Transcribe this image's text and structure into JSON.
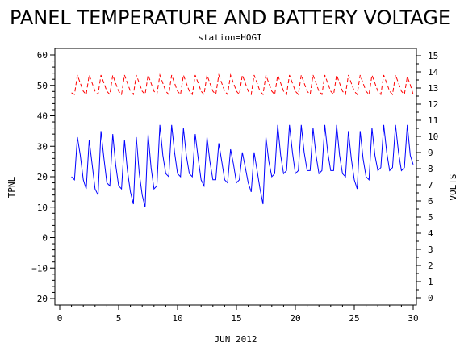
{
  "chart_data": {
    "type": "line",
    "title": "PANEL TEMPERATURE AND BATTERY VOLTAGE",
    "subtitle": "station=HOGI",
    "xlabel": "JUN 2012",
    "ylabel_left": "TPNL",
    "ylabel_right": "VOLTS",
    "xlim": [
      0,
      30
    ],
    "ylim_left": [
      -20,
      60
    ],
    "ylim_right": [
      0,
      15
    ],
    "x_ticks": [
      0,
      5,
      10,
      15,
      20,
      25,
      30
    ],
    "x_tick_labels": [
      "0",
      "5",
      "10",
      "15",
      "20",
      "25",
      "30"
    ],
    "y_left_ticks": [
      -20,
      -10,
      0,
      10,
      20,
      30,
      40,
      50,
      60
    ],
    "y_left_tick_labels": [
      "−20",
      "−10",
      "0",
      "10",
      "20",
      "30",
      "40",
      "50",
      "60"
    ],
    "y_right_ticks": [
      0,
      1,
      2,
      3,
      4,
      5,
      6,
      7,
      8,
      9,
      10,
      11,
      12,
      13,
      14,
      15
    ],
    "y_right_tick_labels": [
      "0",
      "1",
      "2",
      "3",
      "4",
      "5",
      "6",
      "7",
      "8",
      "9",
      "10",
      "11",
      "12",
      "13",
      "14",
      "15"
    ],
    "grid": false,
    "series": [
      {
        "axis": "left",
        "color": "#0000ff",
        "style": "solid",
        "x": [
          1.0,
          1.25,
          1.5,
          1.75,
          2.0,
          2.25,
          2.5,
          2.75,
          3.0,
          3.25,
          3.5,
          3.75,
          4.0,
          4.25,
          4.5,
          4.75,
          5.0,
          5.25,
          5.5,
          5.75,
          6.0,
          6.25,
          6.5,
          6.75,
          7.0,
          7.25,
          7.5,
          7.75,
          8.0,
          8.25,
          8.5,
          8.75,
          9.0,
          9.25,
          9.5,
          9.75,
          10.0,
          10.25,
          10.5,
          10.75,
          11.0,
          11.25,
          11.5,
          11.75,
          12.0,
          12.25,
          12.5,
          12.75,
          13.0,
          13.25,
          13.5,
          13.75,
          14.0,
          14.25,
          14.5,
          14.75,
          15.0,
          15.25,
          15.5,
          15.75,
          16.0,
          16.25,
          16.5,
          16.75,
          17.0,
          17.25,
          17.5,
          17.75,
          18.0,
          18.25,
          18.5,
          18.75,
          19.0,
          19.25,
          19.5,
          19.75,
          20.0,
          20.25,
          20.5,
          20.75,
          21.0,
          21.25,
          21.5,
          21.75,
          22.0,
          22.25,
          22.5,
          22.75,
          23.0,
          23.25,
          23.5,
          23.75,
          24.0,
          24.25,
          24.5,
          24.75,
          25.0,
          25.25,
          25.5,
          25.75,
          26.0,
          26.25,
          26.5,
          26.75,
          27.0,
          27.25,
          27.5,
          27.75,
          28.0,
          28.25,
          28.5,
          28.75,
          29.0,
          29.25,
          29.5,
          29.75,
          30.0
        ],
        "values": [
          20,
          19,
          33,
          27,
          19,
          16,
          32,
          24,
          16,
          14,
          35,
          26,
          18,
          17,
          34,
          24,
          17,
          16,
          32,
          22,
          15,
          11,
          33,
          21,
          14,
          10,
          34,
          23,
          16,
          17,
          37,
          27,
          21,
          20,
          37,
          28,
          21,
          20,
          36,
          27,
          21,
          20,
          34,
          26,
          19,
          17,
          33,
          25,
          19,
          19,
          31,
          25,
          19,
          18,
          29,
          24,
          18,
          19,
          28,
          23,
          18,
          15,
          28,
          22,
          16,
          11,
          33,
          25,
          20,
          21,
          37,
          27,
          21,
          22,
          37,
          28,
          21,
          22,
          37,
          28,
          22,
          22,
          36,
          27,
          21,
          22,
          37,
          28,
          22,
          22,
          37,
          27,
          21,
          20,
          35,
          26,
          19,
          16,
          35,
          26,
          20,
          19,
          36,
          27,
          22,
          23,
          37,
          28,
          22,
          23,
          37,
          28,
          22,
          23,
          37,
          27,
          24
        ]
      },
      {
        "axis": "right",
        "color": "#ff0000",
        "style": "dashed",
        "x": [
          1.0,
          1.25,
          1.5,
          1.75,
          2.0,
          2.25,
          2.5,
          2.75,
          3.0,
          3.25,
          3.5,
          3.75,
          4.0,
          4.25,
          4.5,
          4.75,
          5.0,
          5.25,
          5.5,
          5.75,
          6.0,
          6.25,
          6.5,
          6.75,
          7.0,
          7.25,
          7.5,
          7.75,
          8.0,
          8.25,
          8.5,
          8.75,
          9.0,
          9.25,
          9.5,
          9.75,
          10.0,
          10.25,
          10.5,
          10.75,
          11.0,
          11.25,
          11.5,
          11.75,
          12.0,
          12.25,
          12.5,
          12.75,
          13.0,
          13.25,
          13.5,
          13.75,
          14.0,
          14.25,
          14.5,
          14.75,
          15.0,
          15.25,
          15.5,
          15.75,
          16.0,
          16.25,
          16.5,
          16.75,
          17.0,
          17.25,
          17.5,
          17.75,
          18.0,
          18.25,
          18.5,
          18.75,
          19.0,
          19.25,
          19.5,
          19.75,
          20.0,
          20.25,
          20.5,
          20.75,
          21.0,
          21.25,
          21.5,
          21.75,
          22.0,
          22.25,
          22.5,
          22.75,
          23.0,
          23.25,
          23.5,
          23.75,
          24.0,
          24.25,
          24.5,
          24.75,
          25.0,
          25.25,
          25.5,
          25.75,
          26.0,
          26.25,
          26.5,
          26.75,
          27.0,
          27.25,
          27.5,
          27.75,
          28.0,
          28.25,
          28.5,
          28.75,
          29.0,
          29.25,
          29.5,
          29.75,
          30.0
        ],
        "values": [
          12.7,
          12.6,
          13.8,
          13.3,
          12.8,
          12.6,
          13.8,
          13.3,
          12.8,
          12.6,
          13.8,
          13.3,
          12.8,
          12.6,
          13.8,
          13.3,
          12.8,
          12.6,
          13.8,
          13.3,
          12.8,
          12.6,
          13.8,
          13.3,
          12.8,
          12.6,
          13.8,
          13.3,
          12.8,
          12.6,
          13.8,
          13.3,
          12.8,
          12.6,
          13.8,
          13.3,
          12.8,
          12.6,
          13.8,
          13.3,
          12.8,
          12.6,
          13.8,
          13.3,
          12.8,
          12.6,
          13.8,
          13.3,
          12.8,
          12.6,
          13.8,
          13.3,
          12.8,
          12.6,
          13.8,
          13.3,
          12.8,
          12.6,
          13.8,
          13.3,
          12.8,
          12.6,
          13.8,
          13.3,
          12.8,
          12.6,
          13.8,
          13.3,
          12.8,
          12.6,
          13.8,
          13.3,
          12.8,
          12.6,
          13.8,
          13.3,
          12.8,
          12.6,
          13.8,
          13.3,
          12.8,
          12.6,
          13.8,
          13.3,
          12.8,
          12.6,
          13.8,
          13.3,
          12.8,
          12.6,
          13.8,
          13.3,
          12.8,
          12.6,
          13.8,
          13.3,
          12.8,
          12.6,
          13.8,
          13.3,
          12.8,
          12.6,
          13.8,
          13.3,
          12.8,
          12.6,
          13.8,
          13.3,
          12.8,
          12.6,
          13.8,
          13.3,
          12.8,
          12.6,
          13.7,
          13.2,
          12.6
        ]
      }
    ]
  }
}
